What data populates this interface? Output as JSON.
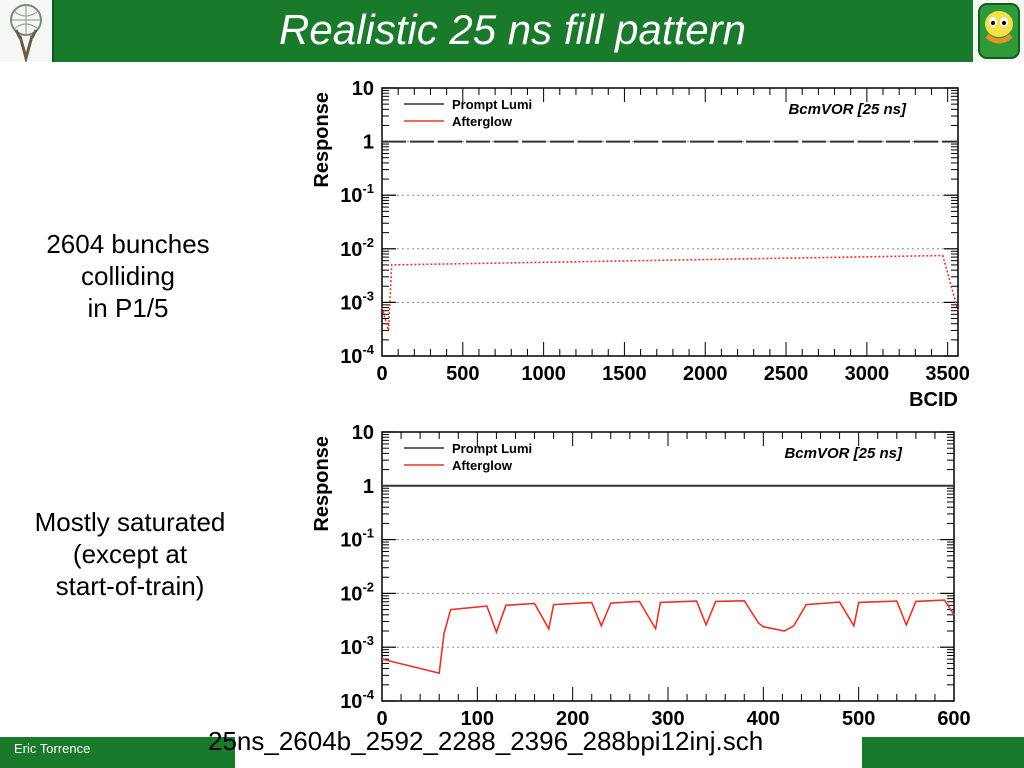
{
  "slide": {
    "title": "Realistic 25 ns fill pattern",
    "text_top": [
      "2604 bunches",
      "colliding",
      "in P1/5"
    ],
    "text_bottom": [
      "Mostly saturated",
      "(except at",
      "start-of-train)"
    ],
    "filename": "25ns_2604b_2592_2288_2396_288bpi12inj.sch",
    "author": "Eric Torrence"
  },
  "colors": {
    "green": "#1a7a2c",
    "prompt": "#333333",
    "afterglow": "#e8332a"
  },
  "chart_data": [
    {
      "type": "line",
      "title": "BcmVOR [25 ns]",
      "xlabel": "BCID",
      "ylabel": "Response",
      "xlim": [
        0,
        3564
      ],
      "ylim": [
        0.0001,
        10
      ],
      "log_y": true,
      "grid": "horizontal dotted",
      "legend": "top-left",
      "x_ticks": [
        "0",
        "500",
        "1000",
        "1500",
        "2000",
        "2500",
        "3000",
        "3500"
      ],
      "y_ticks": [
        "10",
        "1",
        "10-1",
        "10-2",
        "10-3",
        "10-4"
      ],
      "series": [
        {
          "name": "Prompt Lumi",
          "y": 1.0,
          "note": "flat at 1 for colliding bunches"
        },
        {
          "name": "Afterglow",
          "x": [
            0,
            40,
            60,
            3470,
            3564
          ],
          "y": [
            0.0008,
            0.0003,
            0.005,
            0.0075,
            0.0007
          ]
        }
      ]
    },
    {
      "type": "line",
      "title": "BcmVOR [25 ns]",
      "xlabel": "BCID",
      "ylabel": "Response",
      "xlim": [
        0,
        600
      ],
      "ylim": [
        0.0001,
        10
      ],
      "log_y": true,
      "grid": "horizontal dotted",
      "legend": "top-left",
      "x_ticks": [
        "0",
        "100",
        "200",
        "300",
        "400",
        "500",
        "600"
      ],
      "y_ticks": [
        "10",
        "1",
        "10-1",
        "10-2",
        "10-3",
        "10-4"
      ],
      "series": [
        {
          "name": "Prompt Lumi",
          "y": 1.0,
          "note": "flat at 1 for colliding bunches"
        },
        {
          "name": "Afterglow",
          "x": [
            0,
            60,
            65,
            72,
            110,
            120,
            130,
            160,
            175,
            180,
            220,
            230,
            240,
            270,
            287,
            292,
            330,
            340,
            350,
            380,
            395,
            400,
            422,
            432,
            445,
            480,
            495,
            500,
            540,
            550,
            560,
            590,
            600
          ],
          "y": [
            0.0006,
            0.00033,
            0.0018,
            0.005,
            0.0058,
            0.0019,
            0.006,
            0.0065,
            0.0022,
            0.0062,
            0.0068,
            0.0025,
            0.0066,
            0.0071,
            0.0022,
            0.0068,
            0.0072,
            0.0026,
            0.0071,
            0.0073,
            0.0028,
            0.0024,
            0.002,
            0.0025,
            0.0062,
            0.0069,
            0.0025,
            0.0068,
            0.0072,
            0.0026,
            0.0071,
            0.0075,
            0.004
          ]
        }
      ]
    }
  ]
}
